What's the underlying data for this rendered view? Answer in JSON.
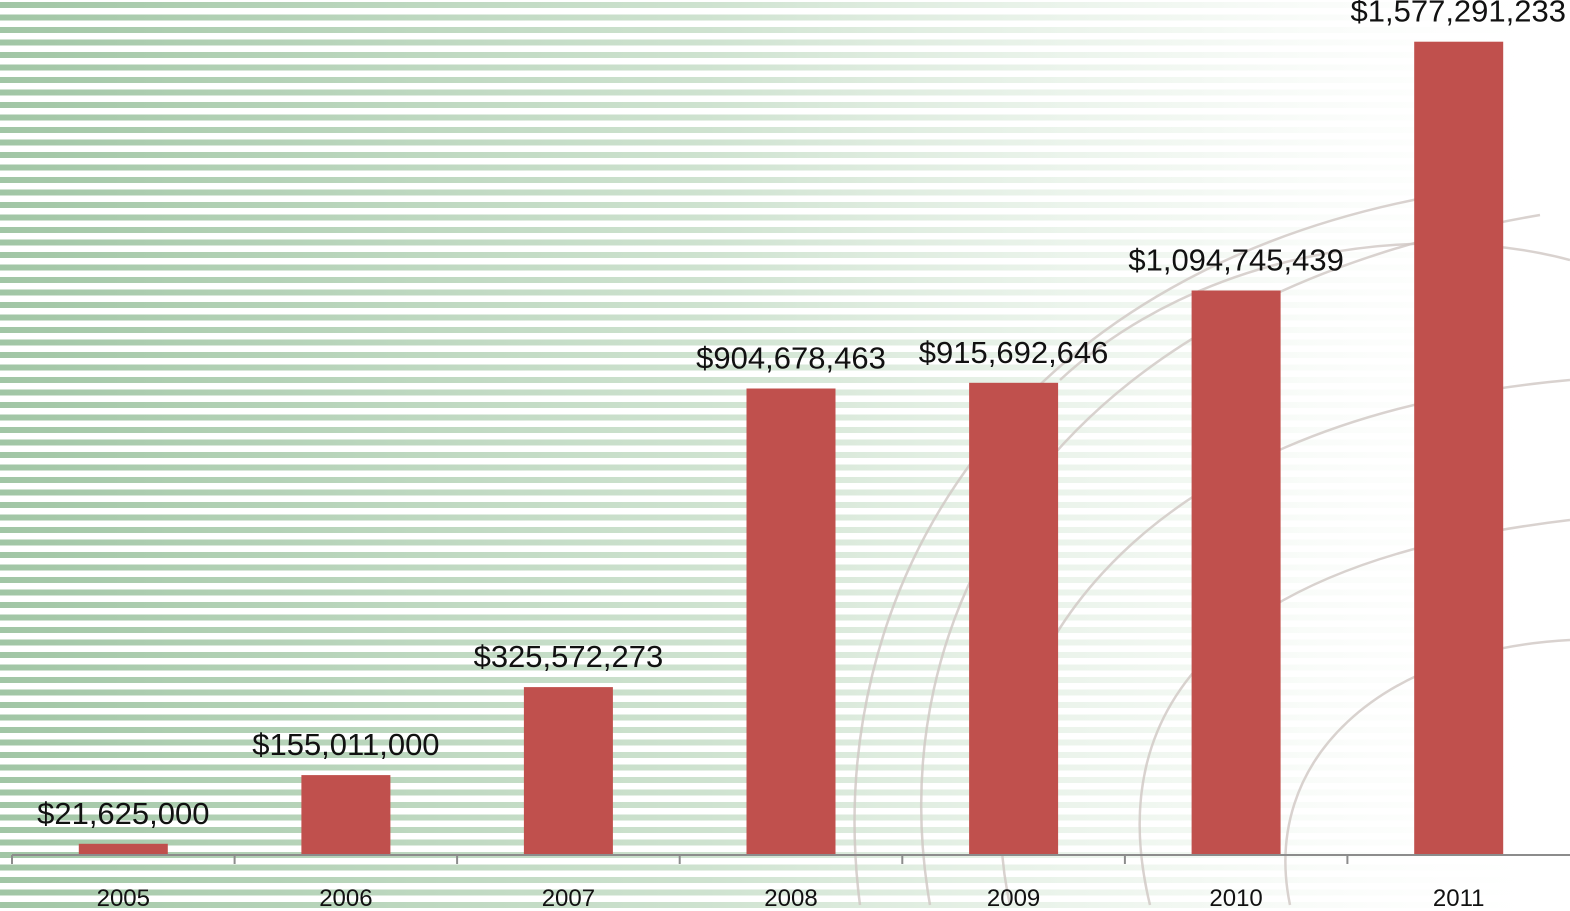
{
  "chart_data": {
    "type": "bar",
    "categories": [
      "2005",
      "2006",
      "2007",
      "2008",
      "2009",
      "2010",
      "2011"
    ],
    "values": [
      21625000,
      155011000,
      325572273,
      904678463,
      915692646,
      1094745439,
      1577291233
    ],
    "value_labels": [
      "$21,625,000",
      "$155,011,000",
      "$325,572,273",
      "$904,678,463",
      "$915,692,646",
      "$1,094,745,439",
      "$1,577,291,233"
    ],
    "title": "",
    "xlabel": "",
    "ylabel": "",
    "ylim": [
      0,
      1600000000
    ],
    "grid": false,
    "legend": "none"
  },
  "colors": {
    "bar": "#C0504D",
    "axis": "#8C8C8C",
    "stripe": "#9CC3A0",
    "swirl": "#CFC7C3",
    "background": "#FFFFFF"
  }
}
